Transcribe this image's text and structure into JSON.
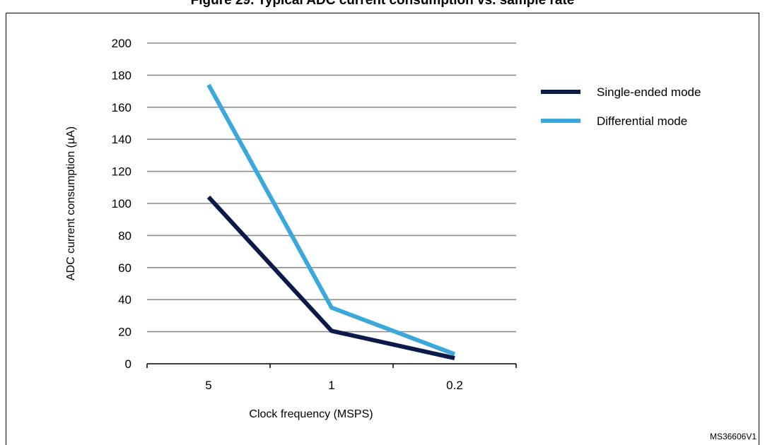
{
  "chart_data": {
    "type": "line",
    "title": "Figure 29. Typical ADC current consumption vs. sample rate",
    "categories": [
      "5",
      "1",
      "0.2"
    ],
    "series": [
      {
        "name": "Single-ended mode",
        "values": [
          104,
          20.5,
          3.5
        ],
        "color": "#0a1a4a"
      },
      {
        "name": "Differential mode",
        "values": [
          174,
          35,
          6
        ],
        "color": "#3aa8db"
      }
    ],
    "xlabel": "Clock frequency (MSPS)",
    "ylabel": "ADC current consumption (µA)",
    "ylim": [
      0,
      200
    ],
    "yticks": [
      0,
      20,
      40,
      60,
      80,
      100,
      120,
      140,
      160,
      180,
      200
    ],
    "grid": true,
    "legend": "right"
  },
  "figure_id": "MS36606V1"
}
